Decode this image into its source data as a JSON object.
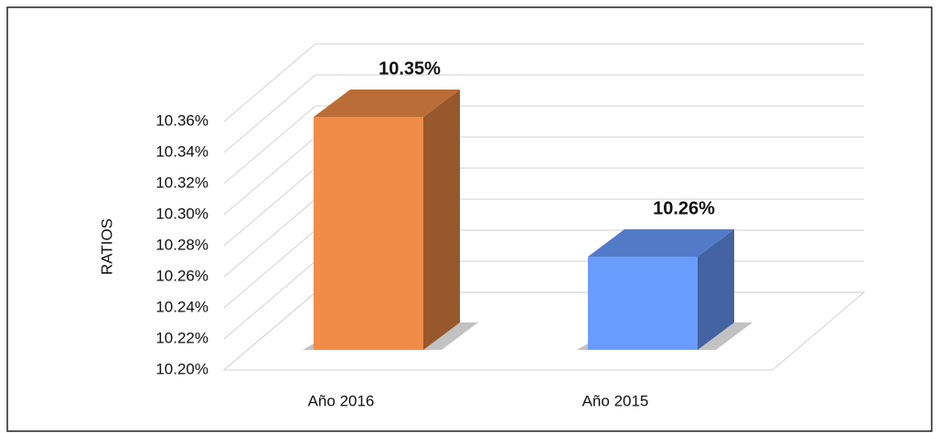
{
  "chart_data": {
    "type": "bar3d",
    "categories": [
      "Año 2016",
      "Año 2015"
    ],
    "values": [
      10.35,
      10.26
    ],
    "value_labels": [
      "10.35%",
      "10.26%"
    ],
    "colors": [
      "#f08c48",
      "#6a9cff"
    ],
    "y_label": "RATIOS",
    "ylim": [
      10.2,
      10.36
    ],
    "yticks": [
      {
        "value": 10.2,
        "label": "10.20%"
      },
      {
        "value": 10.22,
        "label": "10.22%"
      },
      {
        "value": 10.24,
        "label": "10.24%"
      },
      {
        "value": 10.26,
        "label": "10.26%"
      },
      {
        "value": 10.28,
        "label": "10.28%"
      },
      {
        "value": 10.3,
        "label": "10.30%"
      },
      {
        "value": 10.32,
        "label": "10.32%"
      },
      {
        "value": 10.34,
        "label": "10.34%"
      },
      {
        "value": 10.36,
        "label": "10.36%"
      }
    ],
    "grid": true
  }
}
